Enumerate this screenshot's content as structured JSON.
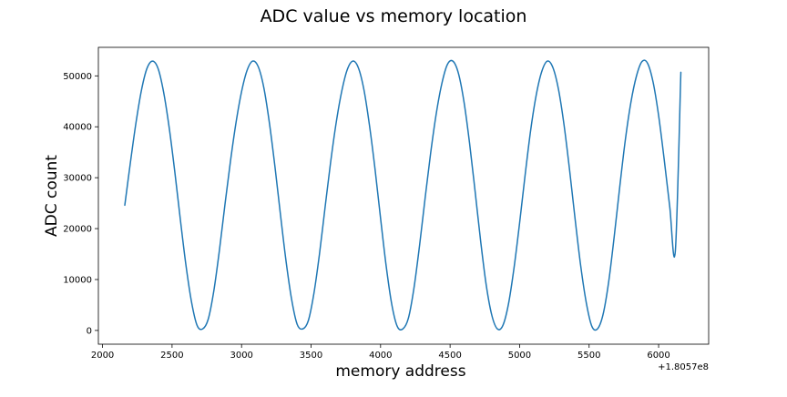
{
  "chart_data": {
    "type": "line",
    "title": "ADC value vs memory location",
    "xlabel": "memory address",
    "ylabel": "ADC count",
    "x_offset_label": "+1.8057e8",
    "xlim": [
      1970,
      6360
    ],
    "ylim": [
      -2700,
      55600
    ],
    "x_ticks": [
      2000,
      2500,
      3000,
      3500,
      4000,
      4500,
      5000,
      5500,
      6000
    ],
    "y_ticks": [
      0,
      10000,
      20000,
      30000,
      40000,
      50000
    ],
    "grid": false,
    "legend": "none",
    "line_color": "#1f77b4",
    "series": [
      {
        "x": [
          2160,
          2200,
          2240,
          2280,
          2320,
          2360,
          2400,
          2440,
          2480,
          2520,
          2560,
          2600,
          2640,
          2680,
          2720,
          2760,
          2800,
          2840,
          2880,
          2920,
          2960,
          3000,
          3040,
          3080,
          3120,
          3160,
          3200,
          3240,
          3280,
          3320,
          3360,
          3400,
          3440,
          3480,
          3520,
          3560,
          3600,
          3640,
          3680,
          3720,
          3760,
          3800,
          3840,
          3880,
          3920,
          3960,
          4000,
          4040,
          4080,
          4120,
          4160,
          4200,
          4240,
          4280,
          4320,
          4360,
          4400,
          4440,
          4480,
          4520,
          4560,
          4600,
          4640,
          4680,
          4720,
          4760,
          4800,
          4840,
          4880,
          4920,
          4960,
          5000,
          5040,
          5080,
          5120,
          5160,
          5200,
          5240,
          5280,
          5320,
          5360,
          5400,
          5440,
          5480,
          5520,
          5560,
          5600,
          5640,
          5680,
          5720,
          5760,
          5800,
          5840,
          5880,
          5920,
          5960,
          6000,
          6040,
          6080,
          6120,
          6160
        ],
        "y": [
          24600,
          32900,
          40700,
          47200,
          51500,
          52900,
          51400,
          46700,
          39700,
          31100,
          21700,
          12800,
          5600,
          1000,
          300,
          2200,
          7700,
          15600,
          24600,
          33200,
          40800,
          46900,
          51100,
          52900,
          51800,
          47700,
          40800,
          32200,
          22700,
          13600,
          6100,
          1200,
          300,
          1900,
          7200,
          14900,
          24000,
          32900,
          40700,
          46900,
          51200,
          52900,
          51600,
          47300,
          40300,
          31700,
          22000,
          12700,
          5200,
          800,
          300,
          2400,
          8300,
          16600,
          25900,
          34800,
          42500,
          48400,
          52200,
          52900,
          50500,
          44900,
          36800,
          27300,
          17500,
          8900,
          3000,
          300,
          1000,
          5200,
          12300,
          21100,
          30600,
          39400,
          46300,
          50900,
          52900,
          51600,
          47300,
          40300,
          31400,
          21700,
          12600,
          5400,
          800,
          300,
          3100,
          9400,
          18300,
          28100,
          37300,
          44700,
          49900,
          52800,
          52500,
          48800,
          42200,
          33600,
          24300,
          15500,
          50700
        ]
      }
    ]
  }
}
